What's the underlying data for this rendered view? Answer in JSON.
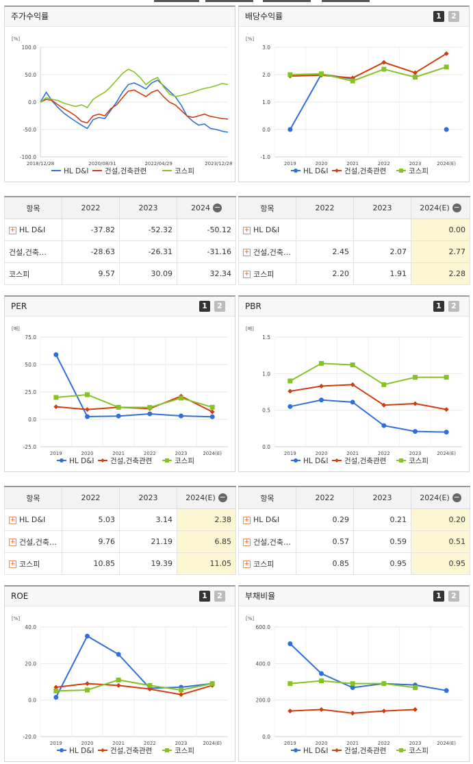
{
  "colors": {
    "hl": "#2f6fd8",
    "con": "#d23b0c",
    "kos": "#84c225"
  },
  "legend": {
    "hl": "HL D&I",
    "con": "건설,건축관련",
    "kos": "코스피"
  },
  "panels": {
    "stock": {
      "title": "주가수익률",
      "unit": "[%]"
    },
    "div": {
      "title": "배당수익률",
      "unit": "[%]",
      "btn1": "1",
      "btn2": "2"
    },
    "per": {
      "title": "PER",
      "unit": "[배]",
      "btn1": "1",
      "btn2": "2"
    },
    "pbr": {
      "title": "PBR",
      "unit": "[배]",
      "btn1": "1",
      "btn2": "2"
    },
    "roe": {
      "title": "ROE",
      "unit": "[%]",
      "btn1": "1",
      "btn2": "2"
    },
    "debt": {
      "title": "부채비율",
      "unit": "[%]",
      "btn1": "1",
      "btn2": "2"
    }
  },
  "tables": {
    "stock": {
      "head": [
        "항목",
        "2022",
        "2023",
        "2024"
      ],
      "rows": [
        {
          "label": "HL D&I",
          "plus": true,
          "v": [
            "-37.82",
            "-52.32",
            "-50.12"
          ]
        },
        {
          "label": "건설,건축…",
          "plus": false,
          "v": [
            "-28.63",
            "-26.31",
            "-31.16"
          ]
        },
        {
          "label": "코스피",
          "plus": false,
          "v": [
            "9.57",
            "30.09",
            "32.34"
          ]
        }
      ]
    },
    "div": {
      "head": [
        "항목",
        "2022",
        "2023",
        "2024(E)"
      ],
      "rows": [
        {
          "label": "HL D&I",
          "plus": true,
          "v": [
            "",
            "",
            "0.00"
          ]
        },
        {
          "label": "건설,건축…",
          "plus": true,
          "v": [
            "2.45",
            "2.07",
            "2.77"
          ]
        },
        {
          "label": "코스피",
          "plus": true,
          "v": [
            "2.20",
            "1.91",
            "2.28"
          ]
        }
      ]
    },
    "per": {
      "head": [
        "항목",
        "2022",
        "2023",
        "2024(E)"
      ],
      "rows": [
        {
          "label": "HL D&I",
          "plus": true,
          "v": [
            "5.03",
            "3.14",
            "2.38"
          ]
        },
        {
          "label": "건설,건축…",
          "plus": true,
          "v": [
            "9.76",
            "21.19",
            "6.85"
          ]
        },
        {
          "label": "코스피",
          "plus": true,
          "v": [
            "10.85",
            "19.39",
            "11.05"
          ]
        }
      ]
    },
    "pbr": {
      "head": [
        "항목",
        "2022",
        "2023",
        "2024(E)"
      ],
      "rows": [
        {
          "label": "HL D&I",
          "plus": true,
          "v": [
            "0.29",
            "0.21",
            "0.20"
          ]
        },
        {
          "label": "건설,건축…",
          "plus": true,
          "v": [
            "0.57",
            "0.59",
            "0.51"
          ]
        },
        {
          "label": "코스피",
          "plus": true,
          "v": [
            "0.85",
            "0.95",
            "0.95"
          ]
        }
      ]
    }
  },
  "chart_data": [
    {
      "id": "stock",
      "type": "line",
      "title": "주가수익률",
      "ylabel": "[%]",
      "ylim": [
        -100,
        100
      ],
      "yticks": [
        "100.0",
        "50.0",
        "0.0",
        "-50.0",
        "-100.0"
      ],
      "xticks": [
        "2018/12/28",
        "2020/08/31",
        "2022/04/29",
        "2023/12/28"
      ],
      "series": [
        {
          "name": "HL D&I",
          "values": [
            0,
            18,
            2,
            -10,
            -20,
            -28,
            -35,
            -42,
            -48,
            -32,
            -28,
            -30,
            -15,
            0,
            18,
            32,
            35,
            30,
            24,
            35,
            40,
            30,
            20,
            10,
            -5,
            -25,
            -35,
            -42,
            -40,
            -48,
            -50,
            -53,
            -55
          ]
        },
        {
          "name": "건설,건축관련",
          "values": [
            0,
            5,
            3,
            -5,
            -12,
            -18,
            -25,
            -35,
            -38,
            -25,
            -22,
            -25,
            -12,
            -5,
            8,
            20,
            22,
            16,
            10,
            18,
            22,
            10,
            0,
            -5,
            -15,
            -25,
            -28,
            -25,
            -22,
            -26,
            -28,
            -30,
            -31
          ]
        },
        {
          "name": "코스피",
          "values": [
            0,
            8,
            5,
            3,
            -2,
            -5,
            -8,
            -5,
            -10,
            5,
            12,
            18,
            28,
            40,
            52,
            60,
            55,
            45,
            32,
            40,
            45,
            28,
            15,
            10,
            12,
            15,
            18,
            22,
            25,
            27,
            30,
            34,
            32
          ]
        }
      ]
    },
    {
      "id": "div",
      "type": "line",
      "title": "배당수익률",
      "ylabel": "[%]",
      "ylim": [
        -1,
        3
      ],
      "categories": [
        "2019",
        "2020",
        "2021",
        "2022",
        "2023",
        "2024(E)"
      ],
      "yticks": [
        "3.0",
        "2.0",
        "1.0",
        "0.0",
        "-1.0"
      ],
      "series": [
        {
          "name": "HL D&I",
          "values": [
            0.0,
            2.02,
            1.85,
            null,
            null,
            0.0
          ]
        },
        {
          "name": "건설,건축관련",
          "values": [
            1.95,
            1.98,
            1.88,
            2.45,
            2.07,
            2.77
          ]
        },
        {
          "name": "코스피",
          "values": [
            2.0,
            2.03,
            1.77,
            2.2,
            1.91,
            2.28
          ]
        }
      ]
    },
    {
      "id": "per",
      "type": "line",
      "title": "PER",
      "ylabel": "[배]",
      "ylim": [
        -25,
        75
      ],
      "categories": [
        "2019",
        "2020",
        "2021",
        "2022",
        "2023",
        "2024(E)"
      ],
      "yticks": [
        "75.0",
        "50.0",
        "25.0",
        "0.0",
        "-25.0"
      ],
      "series": [
        {
          "name": "HL D&I",
          "values": [
            59.0,
            2.5,
            3.0,
            5.03,
            3.14,
            2.38
          ]
        },
        {
          "name": "건설,건축관련",
          "values": [
            11.5,
            9.0,
            11.0,
            9.76,
            21.19,
            6.85
          ]
        },
        {
          "name": "코스피",
          "values": [
            20.0,
            22.5,
            11.0,
            10.85,
            19.39,
            11.05
          ]
        }
      ]
    },
    {
      "id": "pbr",
      "type": "line",
      "title": "PBR",
      "ylabel": "[배]",
      "ylim": [
        0,
        1.5
      ],
      "categories": [
        "2019",
        "2020",
        "2021",
        "2022",
        "2023",
        "2024(E)"
      ],
      "yticks": [
        "1.5",
        "1.0",
        "0.5",
        "0.0"
      ],
      "series": [
        {
          "name": "HL D&I",
          "values": [
            0.55,
            0.64,
            0.61,
            0.29,
            0.21,
            0.2
          ]
        },
        {
          "name": "건설,건축관련",
          "values": [
            0.76,
            0.83,
            0.85,
            0.57,
            0.59,
            0.51
          ]
        },
        {
          "name": "코스피",
          "values": [
            0.9,
            1.14,
            1.12,
            0.85,
            0.95,
            0.95
          ]
        }
      ]
    },
    {
      "id": "roe",
      "type": "line",
      "title": "ROE",
      "ylabel": "[%]",
      "ylim": [
        -20,
        40
      ],
      "categories": [
        "2019",
        "2020",
        "2021",
        "2022",
        "2023",
        "2024(E)"
      ],
      "yticks": [
        "40.0",
        "20.0",
        "0.0",
        "-20.0"
      ],
      "series": [
        {
          "name": "HL D&I",
          "values": [
            1.5,
            35.0,
            25.0,
            6.5,
            7.0,
            9.0
          ]
        },
        {
          "name": "건설,건축관련",
          "values": [
            7.0,
            9.0,
            8.0,
            6.0,
            3.0,
            8.0
          ]
        },
        {
          "name": "코스피",
          "values": [
            5.0,
            5.5,
            11.0,
            8.0,
            5.5,
            9.0
          ]
        }
      ]
    },
    {
      "id": "debt",
      "type": "line",
      "title": "부채비율",
      "ylabel": "[%]",
      "ylim": [
        0,
        600
      ],
      "categories": [
        "2019",
        "2020",
        "2021",
        "2022",
        "2023",
        "2024(E)"
      ],
      "yticks": [
        "600.0",
        "400.0",
        "200.0",
        "0.0"
      ],
      "series": [
        {
          "name": "HL D&I",
          "values": [
            508,
            345,
            268,
            290,
            282,
            252
          ]
        },
        {
          "name": "건설,건축관련",
          "values": [
            140,
            148,
            128,
            140,
            148,
            null
          ]
        },
        {
          "name": "코스피",
          "values": [
            290,
            305,
            290,
            290,
            268,
            null
          ]
        }
      ]
    }
  ]
}
